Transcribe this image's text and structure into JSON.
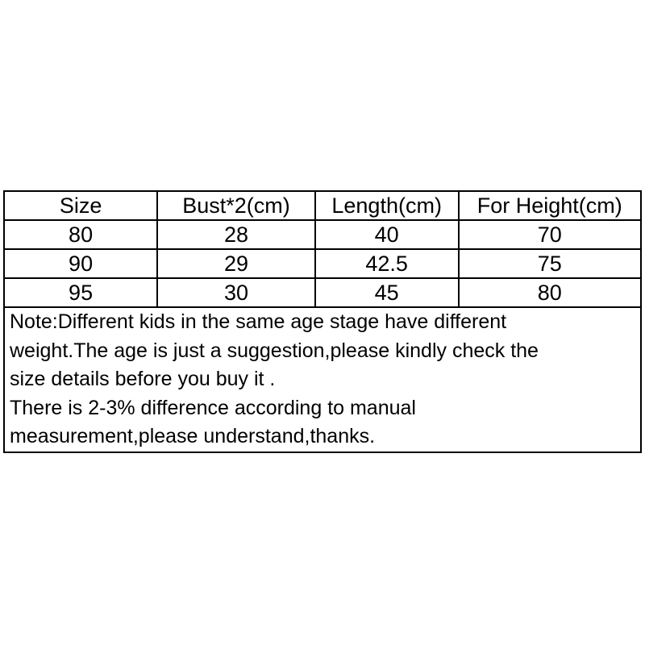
{
  "table": {
    "headers": [
      "Size",
      "Bust*2(cm)",
      "Length(cm)",
      "For Height(cm)"
    ],
    "rows": [
      [
        "80",
        "28",
        "40",
        "70"
      ],
      [
        "90",
        "29",
        "42.5",
        "75"
      ],
      [
        "95",
        "30",
        "45",
        "80"
      ]
    ]
  },
  "note": {
    "lines": [
      "Note:Different kids in the same age stage have different",
      "weight.The age is just a suggestion,please kindly check the",
      "size details before you buy it .",
      "There is 2-3% difference according to manual",
      "measurement,please understand,thanks."
    ]
  }
}
